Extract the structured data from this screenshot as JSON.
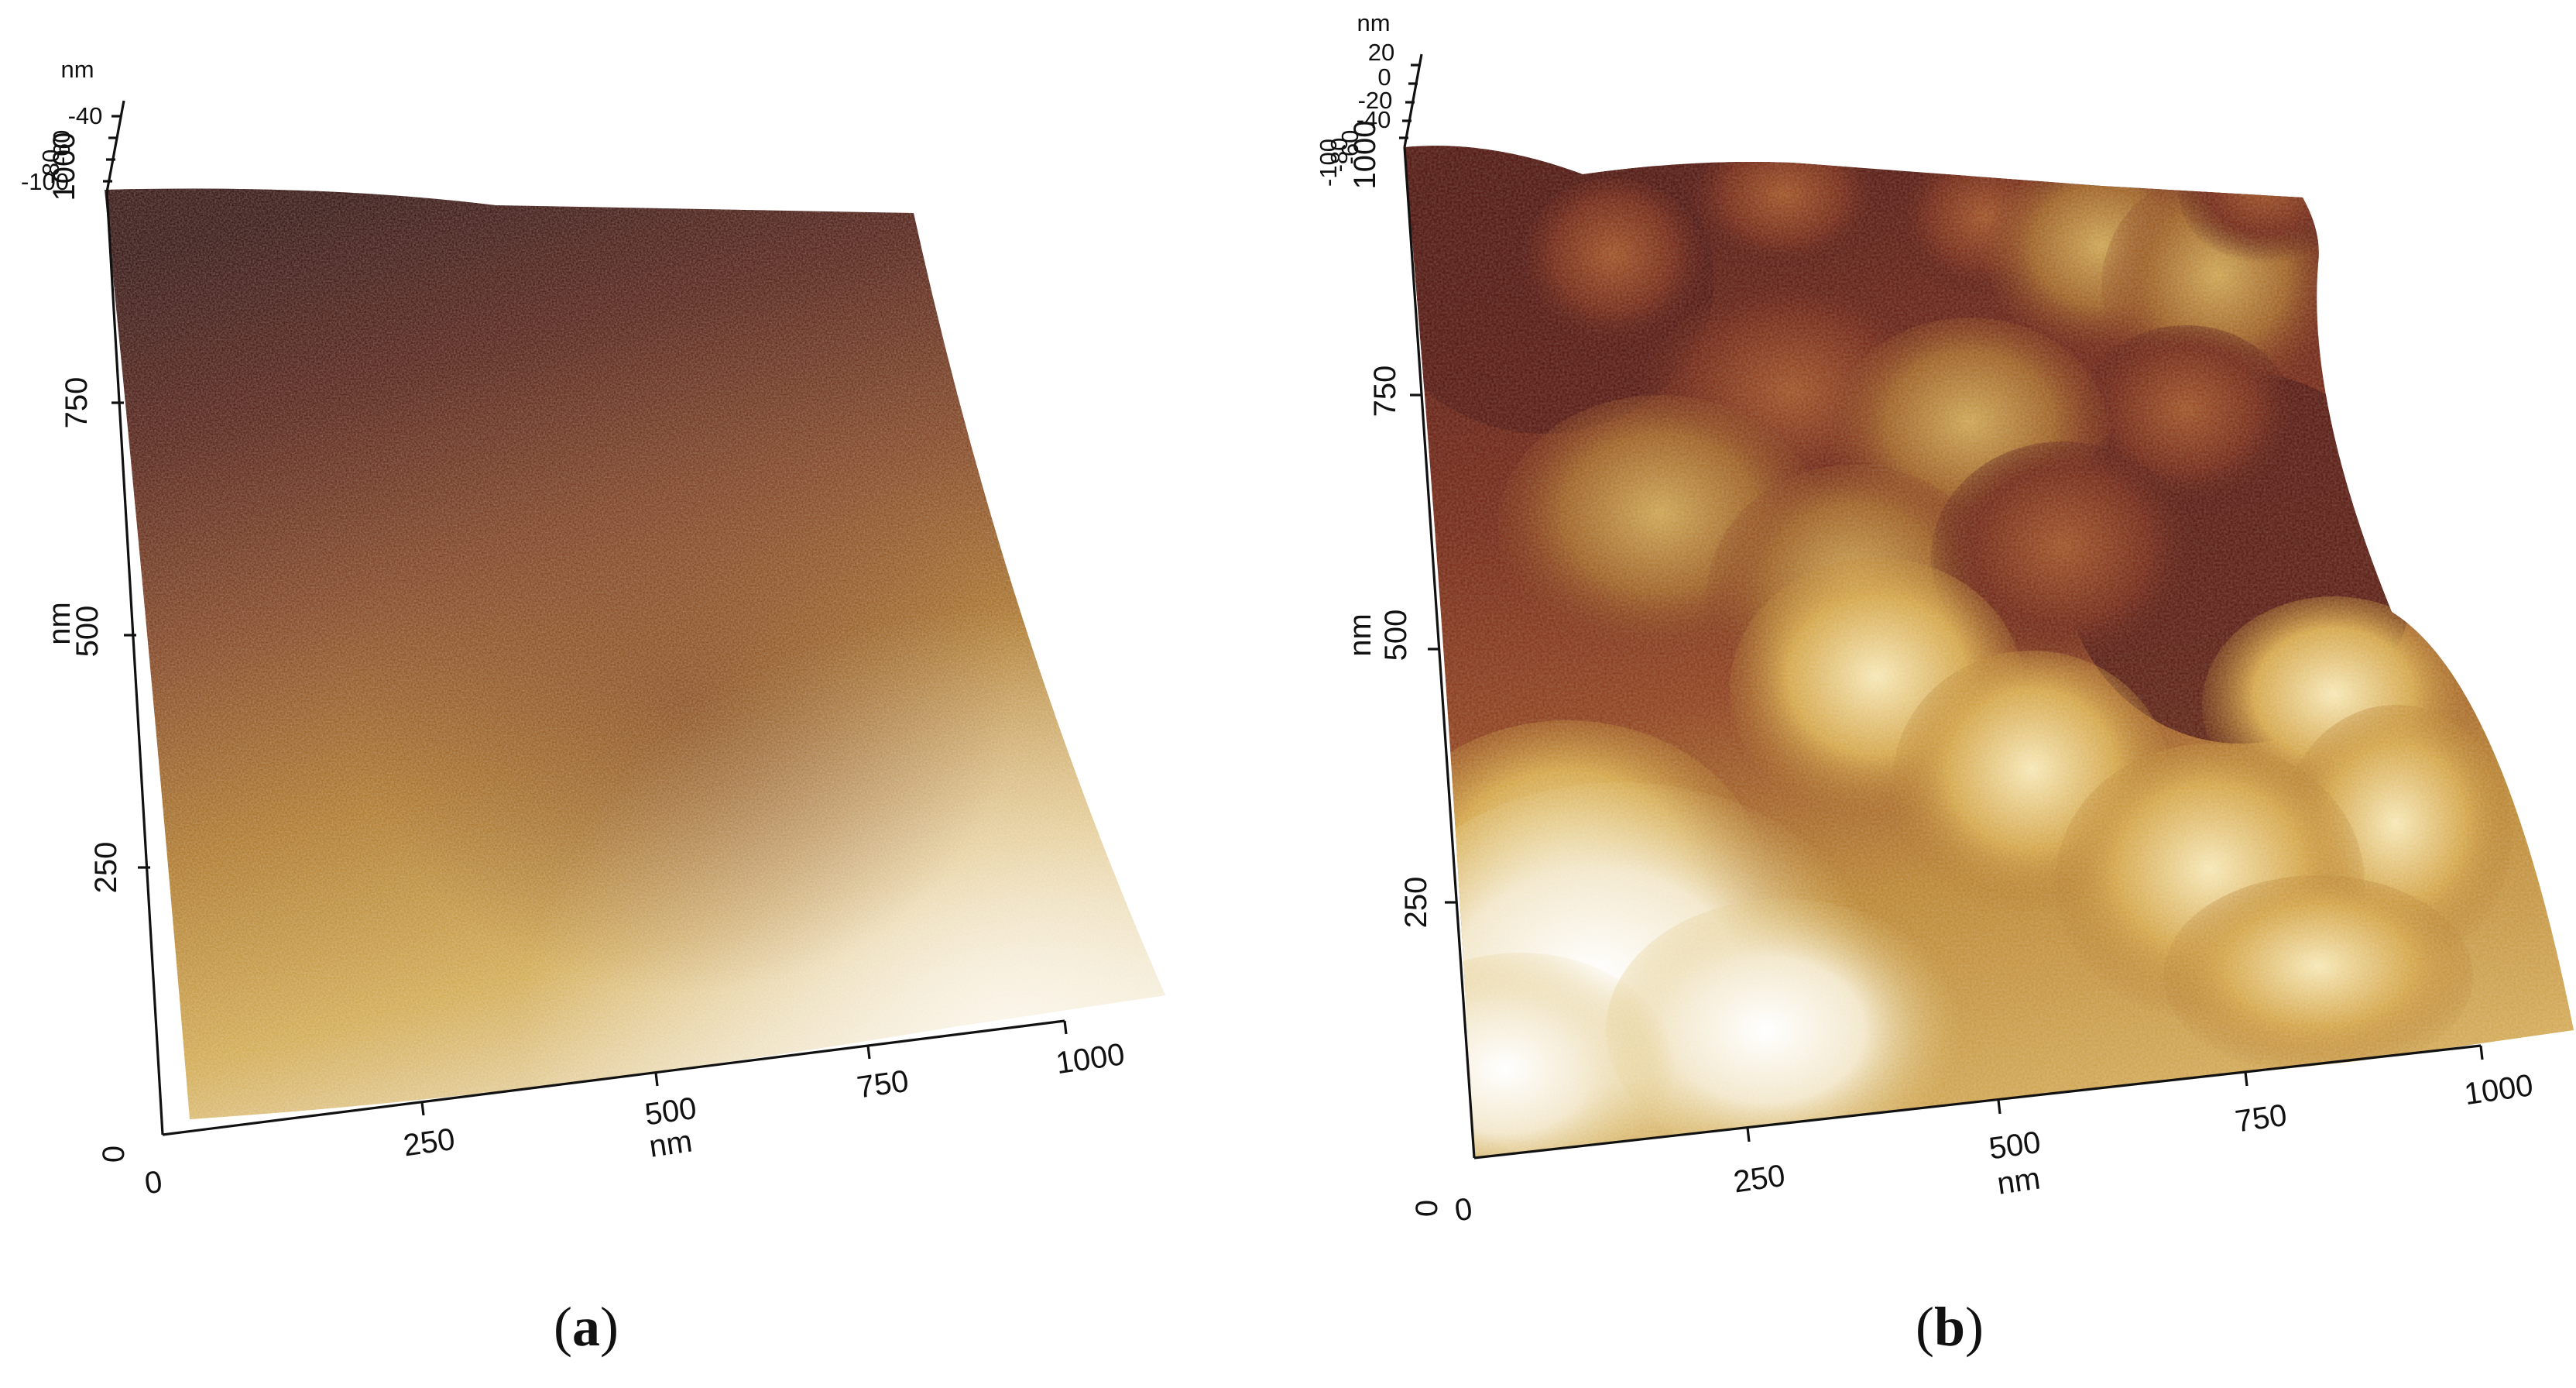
{
  "figure": {
    "panels": [
      {
        "id": "a",
        "caption_open": "(",
        "caption_letter": "a",
        "caption_close": ")",
        "x_axis": {
          "unit": "nm",
          "ticks": [
            "0",
            "250",
            "500",
            "750",
            "1000"
          ]
        },
        "y_axis": {
          "unit": "nm",
          "ticks": [
            "0",
            "250",
            "500",
            "750",
            "1000"
          ]
        },
        "z_axis": {
          "unit": "nm",
          "ticks": [
            "-40",
            "-60",
            "-80",
            "-100"
          ]
        },
        "colormap": [
          "#2a0805",
          "#5a1a0c",
          "#8a4a1c",
          "#b88424",
          "#d6b45a",
          "#f4ecd8"
        ]
      },
      {
        "id": "b",
        "caption_open": "(",
        "caption_letter": "b",
        "caption_close": ")",
        "x_axis": {
          "unit": "nm",
          "ticks": [
            "0",
            "250",
            "500",
            "750",
            "1000"
          ]
        },
        "y_axis": {
          "unit": "nm",
          "ticks": [
            "0",
            "250",
            "500",
            "750",
            "1000"
          ]
        },
        "z_axis": {
          "unit": "nm",
          "ticks": [
            "20",
            "0",
            "-20",
            "-40",
            "-60",
            "-80",
            "-100"
          ]
        },
        "colormap": [
          "#3a0a06",
          "#6a1a0c",
          "#9a4a1a",
          "#c08a2a",
          "#e2c46a",
          "#fbf8f0"
        ]
      }
    ]
  }
}
